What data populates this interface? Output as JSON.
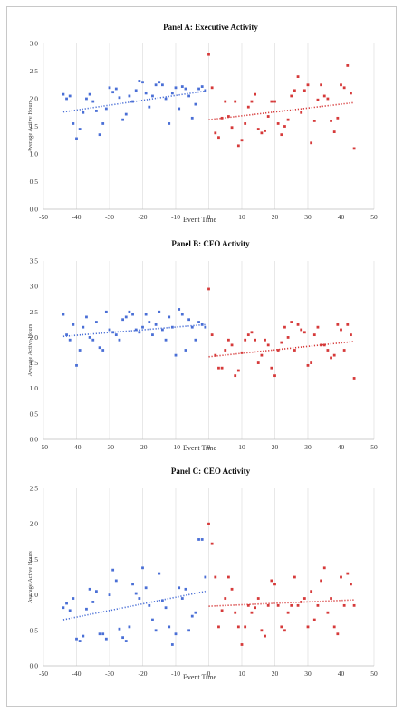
{
  "chart_data": [
    {
      "type": "scatter",
      "title": "Panel A: Executive Activity",
      "xlabel": "Event Time",
      "ylabel": "Average Active Hours",
      "xlim": [
        -50,
        50
      ],
      "ylim": [
        0,
        3.0
      ],
      "xticks": [
        "-50",
        "-40",
        "-30",
        "-20",
        "-10",
        "0",
        "10",
        "20",
        "30",
        "40",
        "50"
      ],
      "yticks": [
        "0.0",
        "0.5",
        "1.0",
        "1.5",
        "2.0",
        "2.5",
        "3.0"
      ],
      "grid": "vertical",
      "series": [
        {
          "color": "#4a6fd6",
          "x": [
            -44,
            -43,
            -42,
            -41,
            -40,
            -39,
            -38,
            -37,
            -36,
            -35,
            -34,
            -33,
            -32,
            -31,
            -30,
            -29,
            -28,
            -27,
            -26,
            -25,
            -24,
            -23,
            -22,
            -21,
            -20,
            -19,
            -18,
            -17,
            -16,
            -15,
            -14,
            -13,
            -12,
            -11,
            -10,
            -9,
            -8,
            -7,
            -6,
            -5,
            -4,
            -3,
            -2,
            -1
          ],
          "y": [
            2.08,
            2.0,
            2.05,
            1.55,
            1.28,
            1.45,
            1.75,
            2.0,
            2.08,
            1.95,
            1.78,
            1.35,
            1.55,
            1.82,
            2.2,
            2.12,
            2.18,
            2.02,
            1.62,
            1.72,
            2.05,
            1.95,
            2.15,
            2.32,
            2.3,
            2.1,
            1.85,
            2.05,
            2.25,
            2.3,
            2.25,
            2.0,
            1.55,
            2.1,
            2.2,
            1.82,
            2.22,
            2.18,
            2.05,
            1.65,
            1.9,
            2.18,
            2.22,
            2.15
          ],
          "trend": [
            1.76,
            2.14
          ]
        },
        {
          "color": "#d63a3a",
          "x": [
            0,
            1,
            2,
            3,
            4,
            5,
            6,
            7,
            8,
            9,
            10,
            11,
            12,
            13,
            14,
            15,
            16,
            17,
            18,
            19,
            20,
            21,
            22,
            23,
            24,
            25,
            26,
            27,
            28,
            29,
            30,
            31,
            32,
            33,
            34,
            35,
            36,
            37,
            38,
            39,
            40,
            41,
            42,
            43,
            44
          ],
          "y": [
            2.8,
            2.2,
            1.38,
            1.3,
            1.65,
            1.95,
            1.68,
            1.48,
            1.95,
            1.15,
            1.25,
            1.55,
            1.85,
            1.95,
            2.08,
            1.45,
            1.38,
            1.42,
            1.68,
            1.95,
            1.95,
            1.55,
            1.35,
            1.5,
            1.62,
            2.05,
            2.15,
            2.4,
            1.75,
            2.15,
            2.25,
            1.2,
            1.6,
            1.98,
            2.25,
            2.05,
            2.0,
            1.6,
            1.4,
            1.65,
            2.25,
            2.2,
            2.6,
            2.1,
            1.1
          ],
          "trend": [
            1.62,
            1.93
          ]
        }
      ]
    },
    {
      "type": "scatter",
      "title": "Panel B: CFO Activity",
      "xlabel": "Event Time",
      "ylabel": "Average Active Hours",
      "xlim": [
        -50,
        50
      ],
      "ylim": [
        0,
        3.5
      ],
      "xticks": [
        "-50",
        "-40",
        "-30",
        "-20",
        "-10",
        "0",
        "10",
        "20",
        "30",
        "40",
        "50"
      ],
      "yticks": [
        "0.0",
        "0.5",
        "1.0",
        "1.5",
        "2.0",
        "2.5",
        "3.0",
        "3.5"
      ],
      "grid": "vertical",
      "series": [
        {
          "color": "#4a6fd6",
          "x": [
            -44,
            -43,
            -42,
            -41,
            -40,
            -39,
            -38,
            -37,
            -36,
            -35,
            -34,
            -33,
            -32,
            -31,
            -30,
            -29,
            -28,
            -27,
            -26,
            -25,
            -24,
            -23,
            -22,
            -21,
            -20,
            -19,
            -18,
            -17,
            -16,
            -15,
            -14,
            -13,
            -12,
            -11,
            -10,
            -9,
            -8,
            -7,
            -6,
            -5,
            -4,
            -3,
            -2,
            -1
          ],
          "y": [
            2.45,
            2.05,
            1.95,
            2.25,
            1.45,
            1.75,
            2.2,
            2.4,
            2.0,
            1.95,
            2.3,
            1.8,
            1.75,
            2.5,
            2.15,
            2.1,
            2.05,
            1.95,
            2.35,
            2.4,
            2.5,
            2.45,
            2.15,
            2.1,
            2.2,
            2.45,
            2.3,
            2.05,
            2.25,
            2.5,
            2.15,
            1.95,
            2.4,
            2.2,
            1.65,
            2.55,
            2.45,
            1.75,
            2.35,
            2.2,
            1.95,
            2.3,
            2.25,
            2.2
          ],
          "trend": [
            2.02,
            2.25
          ]
        },
        {
          "color": "#d63a3a",
          "x": [
            0,
            1,
            2,
            3,
            4,
            5,
            6,
            7,
            8,
            9,
            10,
            11,
            12,
            13,
            14,
            15,
            16,
            17,
            18,
            19,
            20,
            21,
            22,
            23,
            24,
            25,
            26,
            27,
            28,
            29,
            30,
            31,
            32,
            33,
            34,
            35,
            36,
            37,
            38,
            39,
            40,
            41,
            42,
            43,
            44
          ],
          "y": [
            2.95,
            2.05,
            1.65,
            1.4,
            1.4,
            1.75,
            1.95,
            1.85,
            1.25,
            1.35,
            1.7,
            1.95,
            2.05,
            2.1,
            1.95,
            1.5,
            1.65,
            1.95,
            1.85,
            1.4,
            1.25,
            1.75,
            1.9,
            2.2,
            2.0,
            2.3,
            1.75,
            2.25,
            2.15,
            2.1,
            1.45,
            1.5,
            2.05,
            2.2,
            1.85,
            1.85,
            1.75,
            1.6,
            1.65,
            2.25,
            2.15,
            1.75,
            2.25,
            2.05,
            1.2
          ],
          "trend": [
            1.62,
            1.92
          ]
        }
      ]
    },
    {
      "type": "scatter",
      "title": "Panel C: CEO Activity",
      "xlabel": "Event Time",
      "ylabel": "Average Active Hours",
      "xlim": [
        -50,
        50
      ],
      "ylim": [
        0,
        2.5
      ],
      "xticks": [
        "-50",
        "-40",
        "-30",
        "-20",
        "-10",
        "0",
        "10",
        "20",
        "30",
        "40",
        "50"
      ],
      "yticks": [
        "0.0",
        "0.5",
        "1.0",
        "1.5",
        "2.0",
        "2.5"
      ],
      "grid": "vertical",
      "series": [
        {
          "color": "#4a6fd6",
          "x": [
            -44,
            -43,
            -42,
            -41,
            -40,
            -39,
            -38,
            -37,
            -36,
            -35,
            -34,
            -33,
            -32,
            -31,
            -30,
            -29,
            -28,
            -27,
            -26,
            -25,
            -24,
            -23,
            -22,
            -21,
            -20,
            -19,
            -18,
            -17,
            -16,
            -15,
            -14,
            -13,
            -12,
            -11,
            -10,
            -9,
            -8,
            -7,
            -6,
            -5,
            -4,
            -3,
            -2,
            -1
          ],
          "y": [
            0.82,
            0.88,
            0.78,
            0.95,
            0.38,
            0.35,
            0.42,
            0.8,
            1.08,
            0.9,
            1.05,
            0.45,
            0.45,
            0.38,
            1.0,
            1.35,
            1.2,
            0.52,
            0.4,
            0.35,
            0.55,
            1.15,
            1.02,
            0.95,
            1.38,
            1.1,
            0.85,
            0.65,
            0.5,
            1.3,
            0.92,
            0.82,
            0.55,
            0.3,
            0.45,
            1.1,
            0.95,
            1.08,
            0.5,
            0.7,
            0.75,
            1.78,
            1.78,
            1.25
          ],
          "trend": [
            0.65,
            1.05
          ]
        },
        {
          "color": "#d63a3a",
          "x": [
            0,
            1,
            2,
            3,
            4,
            5,
            6,
            7,
            8,
            9,
            10,
            11,
            12,
            13,
            14,
            15,
            16,
            17,
            18,
            19,
            20,
            21,
            22,
            23,
            24,
            25,
            26,
            27,
            28,
            29,
            30,
            31,
            32,
            33,
            34,
            35,
            36,
            37,
            38,
            39,
            40,
            41,
            42,
            43,
            44
          ],
          "y": [
            2.0,
            1.72,
            1.25,
            0.55,
            0.78,
            0.95,
            1.25,
            1.08,
            0.75,
            0.55,
            0.3,
            0.55,
            0.85,
            0.75,
            0.82,
            0.95,
            0.5,
            0.42,
            0.85,
            1.2,
            1.15,
            0.85,
            0.55,
            0.5,
            0.75,
            0.85,
            1.25,
            0.85,
            0.9,
            0.95,
            0.55,
            1.05,
            0.65,
            0.85,
            1.2,
            1.38,
            0.75,
            0.95,
            0.55,
            0.45,
            1.25,
            0.85,
            1.3,
            1.15,
            0.85
          ],
          "trend": [
            0.84,
            0.93
          ]
        }
      ]
    }
  ]
}
